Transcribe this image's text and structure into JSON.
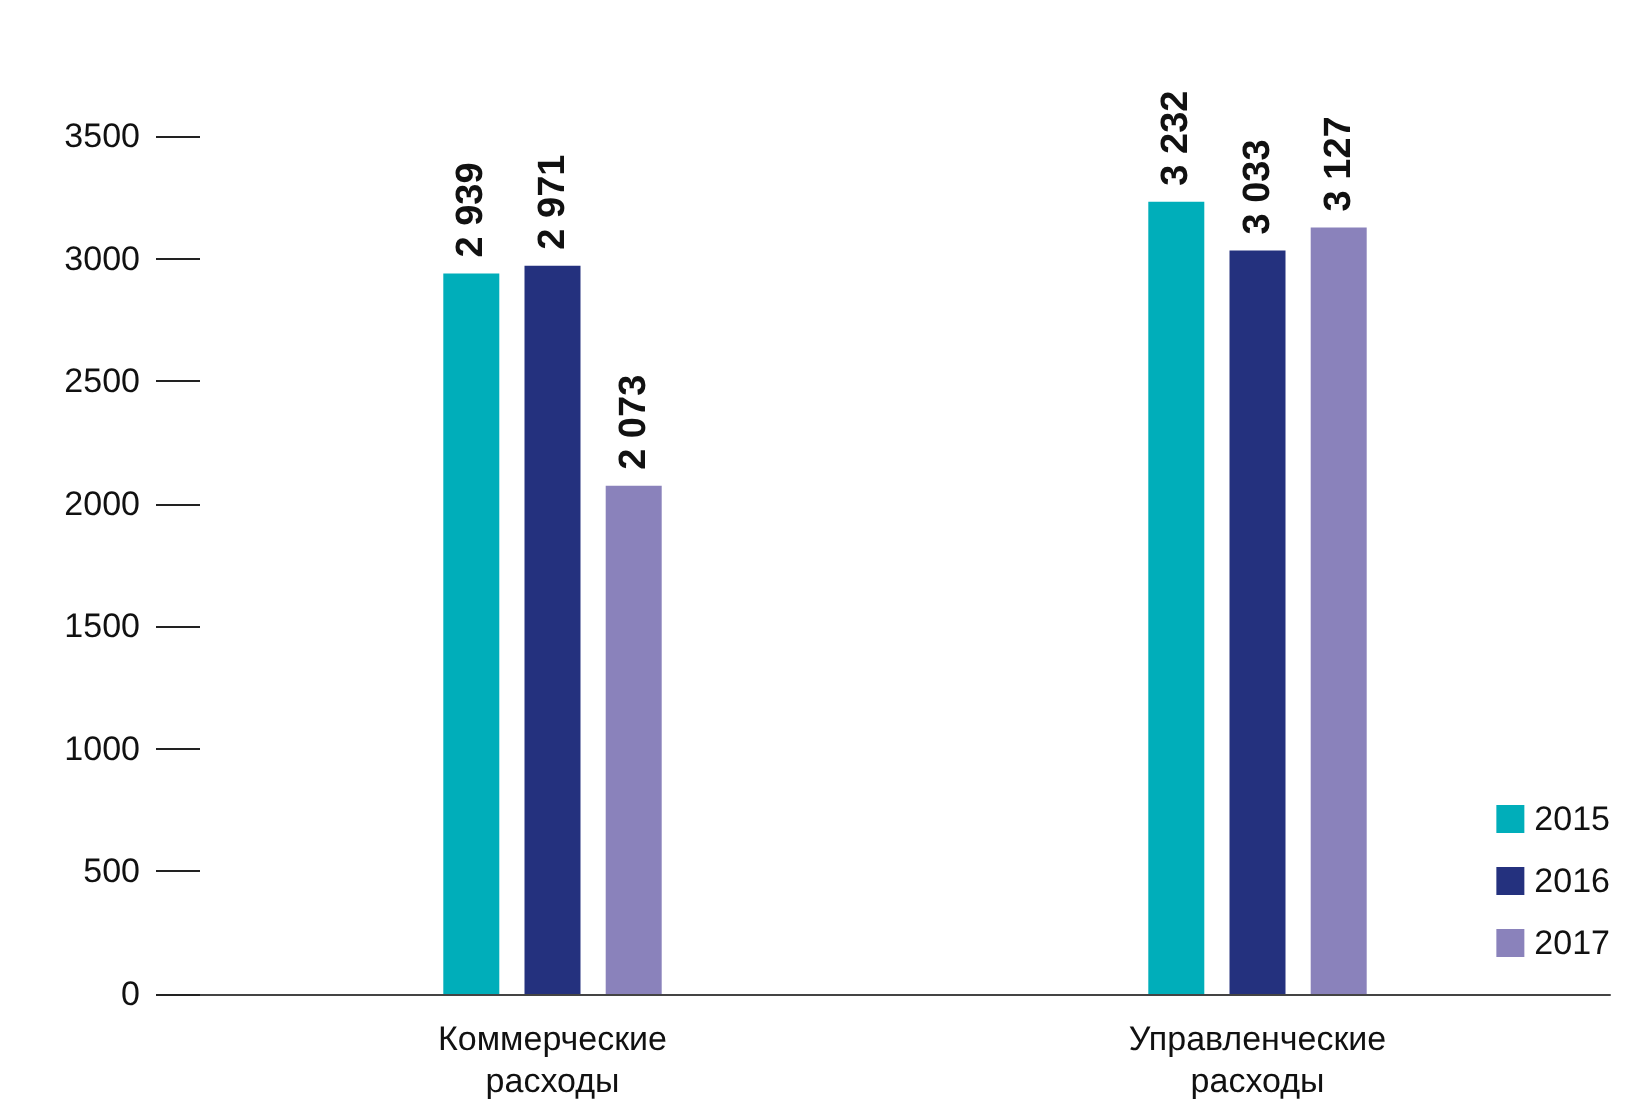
{
  "chart_data": {
    "type": "bar",
    "categories": [
      "Коммерческие расходы",
      "Управленческие расходы"
    ],
    "series": [
      {
        "name": "2015",
        "color": "#00aeba",
        "values": [
          2939,
          3232
        ],
        "value_labels": [
          "2 939",
          "3 232"
        ]
      },
      {
        "name": "2016",
        "color": "#24317e",
        "values": [
          2971,
          3033
        ],
        "value_labels": [
          "2 971",
          "3 033"
        ]
      },
      {
        "name": "2017",
        "color": "#8a82bb",
        "values": [
          2073,
          3127
        ],
        "value_labels": [
          "2 073",
          "3 127"
        ]
      }
    ],
    "ylim": [
      0,
      3500
    ],
    "yticks": [
      0,
      500,
      1000,
      1500,
      2000,
      2500,
      3000,
      3500
    ],
    "grid": false,
    "legend": "bottom right"
  }
}
